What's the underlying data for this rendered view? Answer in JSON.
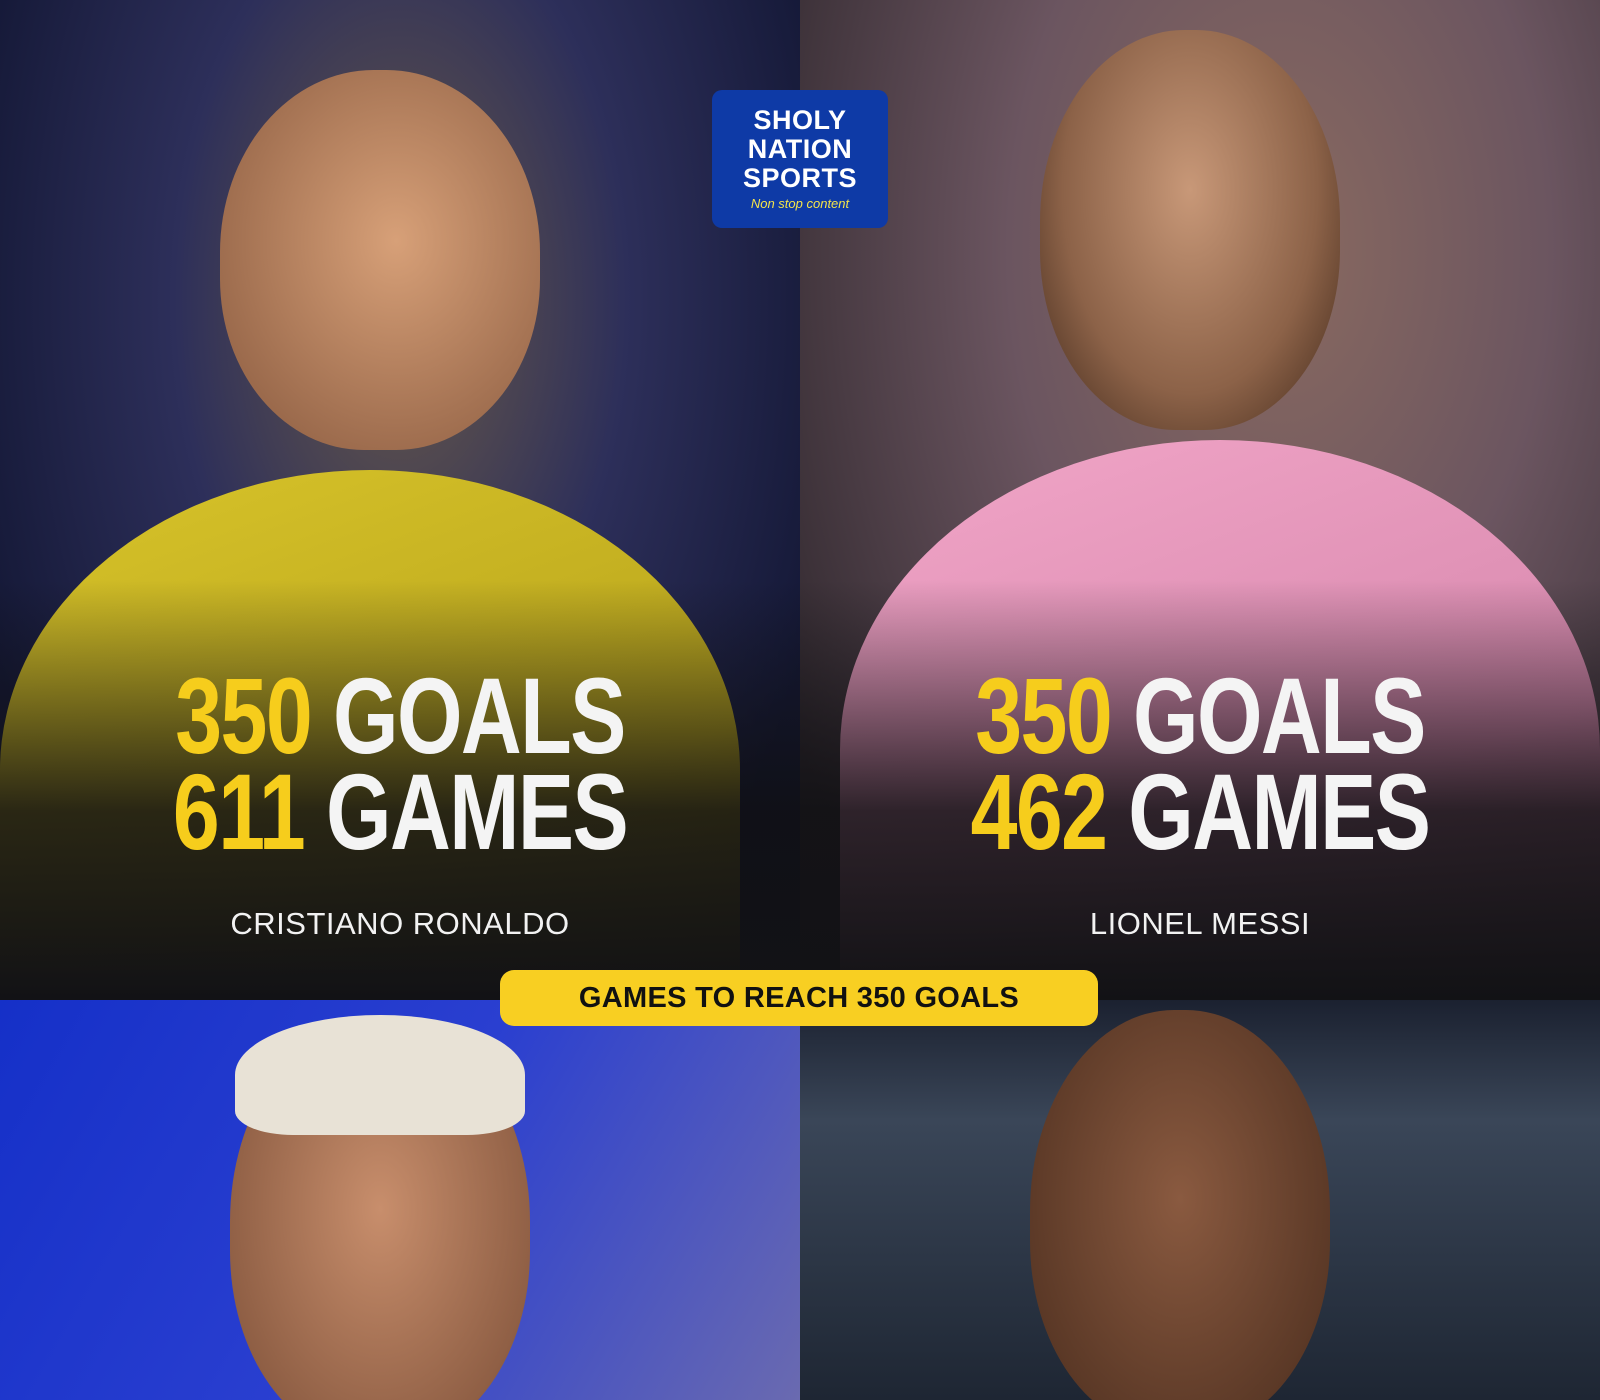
{
  "brand": {
    "logo_lines": [
      "SHOLY",
      "NATION",
      "SPORTS"
    ],
    "tagline": "Non stop content",
    "brand_color": "#0e3aa6"
  },
  "banner": {
    "label": "GAMES TO REACH 350 GOALS",
    "color": "#f8cf22"
  },
  "accent_color": "#f6cd1c",
  "players": [
    {
      "name": "CRISTIANO RONALDO",
      "goals": "350",
      "goals_label": "GOALS",
      "games": "611",
      "games_label": "GAMES"
    },
    {
      "name": "LIONEL MESSI",
      "goals": "350",
      "goals_label": "GOALS",
      "games": "462",
      "games_label": "GAMES"
    }
  ]
}
